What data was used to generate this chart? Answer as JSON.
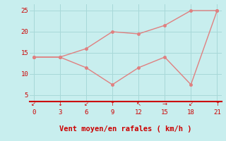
{
  "line1_x": [
    0,
    3,
    6,
    9,
    12,
    15,
    18,
    21
  ],
  "line1_y": [
    14,
    14,
    11.5,
    7.5,
    11.5,
    14,
    7.5,
    25
  ],
  "line2_x": [
    0,
    3,
    6,
    9,
    12,
    15,
    18,
    21
  ],
  "line2_y": [
    14,
    14,
    16,
    20,
    19.5,
    21.5,
    25,
    25
  ],
  "line_color": "#e08080",
  "bg_color": "#c8eeee",
  "grid_color": "#a8d8d8",
  "axis_color": "#cc0000",
  "text_color": "#cc0000",
  "xlabel": "Vent moyen/en rafales ( km/h )",
  "xlim": [
    -0.5,
    21.5
  ],
  "ylim": [
    3.5,
    26.5
  ],
  "xticks": [
    0,
    3,
    6,
    9,
    12,
    15,
    18,
    21
  ],
  "yticks": [
    5,
    10,
    15,
    20,
    25
  ],
  "wind_arrows": [
    [
      0,
      "↙"
    ],
    [
      3,
      "↓"
    ],
    [
      6,
      "↙"
    ],
    [
      9,
      "↑"
    ],
    [
      12,
      "↖"
    ],
    [
      15,
      "→"
    ],
    [
      18,
      "↙"
    ],
    [
      21,
      "↑"
    ]
  ],
  "marker_size": 2.5,
  "line_width": 1.0
}
